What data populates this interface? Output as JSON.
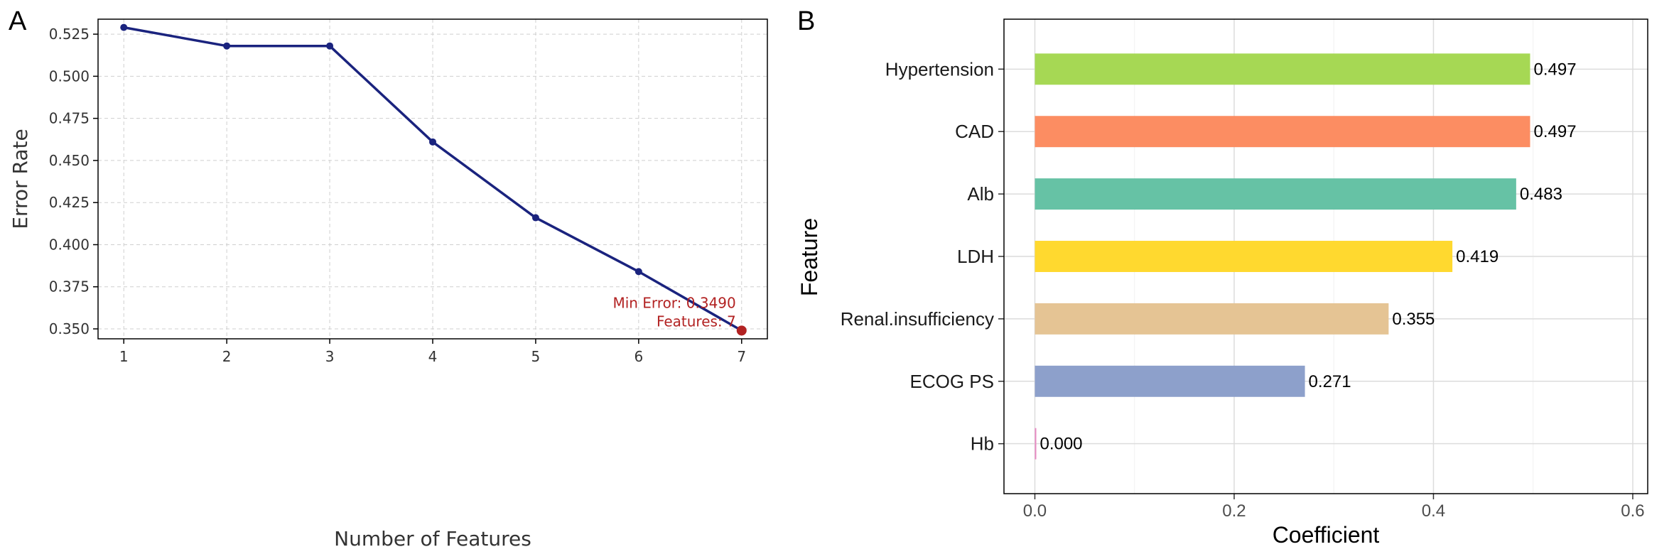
{
  "panels": {
    "a": {
      "label": "A"
    },
    "b": {
      "label": "B"
    }
  },
  "chart_data": [
    {
      "type": "line",
      "panel": "A",
      "title": "",
      "xlabel": "Number of Features",
      "ylabel": "Error Rate",
      "x": [
        1,
        2,
        3,
        4,
        5,
        6,
        7
      ],
      "y": [
        0.529,
        0.518,
        0.518,
        0.461,
        0.416,
        0.384,
        0.349
      ],
      "xticks": [
        "1",
        "2",
        "3",
        "4",
        "5",
        "6",
        "7"
      ],
      "yticks": [
        "0.350",
        "0.375",
        "0.400",
        "0.425",
        "0.450",
        "0.475",
        "0.500",
        "0.525"
      ],
      "xlim": [
        0.75,
        7.25
      ],
      "ylim": [
        0.3441,
        0.5339
      ],
      "grid": true,
      "line_color": "#1a237e",
      "highlight": {
        "x": 7,
        "y": 0.349,
        "color": "#b22222"
      },
      "annotation": {
        "line1": "Min Error: 0.3490",
        "line2": "Features: 7",
        "color": "#b22222"
      }
    },
    {
      "type": "bar",
      "orientation": "horizontal",
      "panel": "B",
      "title": "",
      "xlabel": "Coefficient",
      "ylabel": "Feature",
      "categories": [
        "Hypertension",
        "CAD",
        "Alb",
        "LDH",
        "Renal.insufficiency",
        "ECOG PS",
        "Hb"
      ],
      "values": [
        0.497,
        0.497,
        0.483,
        0.419,
        0.355,
        0.271,
        0.0
      ],
      "value_labels": [
        "0.497",
        "0.497",
        "0.483",
        "0.419",
        "0.355",
        "0.271",
        "0.000"
      ],
      "colors": [
        "#a6d854",
        "#fc8d62",
        "#66c2a5",
        "#ffd92f",
        "#e5c494",
        "#8da0cb",
        "#e78ac3"
      ],
      "xticks": [
        "0.0",
        "0.2",
        "0.4",
        "0.6"
      ],
      "xlim": [
        -0.031,
        0.615
      ],
      "grid": true
    }
  ]
}
